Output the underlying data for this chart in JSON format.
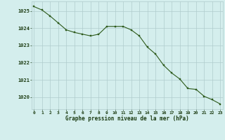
{
  "x": [
    0,
    1,
    2,
    3,
    4,
    5,
    6,
    7,
    8,
    9,
    10,
    11,
    12,
    13,
    14,
    15,
    16,
    17,
    18,
    19,
    20,
    21,
    22,
    23
  ],
  "y": [
    1025.25,
    1025.05,
    1024.7,
    1024.3,
    1023.9,
    1023.75,
    1023.65,
    1023.55,
    1023.65,
    1024.1,
    1024.1,
    1024.1,
    1023.9,
    1023.55,
    1022.9,
    1022.5,
    1021.85,
    1021.4,
    1021.05,
    1020.5,
    1020.45,
    1020.05,
    1019.85,
    1019.6
  ],
  "line_color": "#2d5a1b",
  "marker_color": "#2d5a1b",
  "bg_color": "#d4eeed",
  "grid_color": "#b0cccc",
  "xlabel": "Graphe pression niveau de la mer (hPa)",
  "xlabel_color": "#1a3a10",
  "tick_color": "#1a3a10",
  "ylim": [
    1019.3,
    1025.55
  ],
  "yticks": [
    1020,
    1021,
    1022,
    1023,
    1024,
    1025
  ],
  "xticks": [
    0,
    1,
    2,
    3,
    4,
    5,
    6,
    7,
    8,
    9,
    10,
    11,
    12,
    13,
    14,
    15,
    16,
    17,
    18,
    19,
    20,
    21,
    22,
    23
  ],
  "figsize": [
    3.2,
    2.0
  ],
  "dpi": 100
}
